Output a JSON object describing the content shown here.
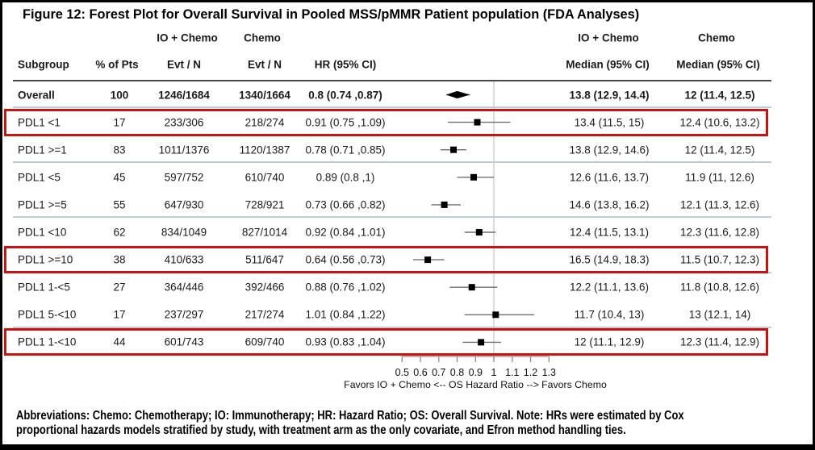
{
  "title": "Figure 12: Forest Plot for Overall Survival in Pooled MSS/pMMR Patient population (FDA Analyses)",
  "table": {
    "group_headers_left": {
      "io_chemo": "IO + Chemo",
      "chemo": "Chemo"
    },
    "group_headers_right": {
      "io_chemo": "IO + Chemo",
      "chemo": "Chemo"
    },
    "columns": {
      "subgroup": "Subgroup",
      "pct": "% of Pts",
      "evt_io": "Evt / N",
      "evt_chemo": "Evt / N",
      "hr": "HR (95% CI)",
      "median_io": "Median (95% CI)",
      "median_chemo": "Median (95% CI)"
    }
  },
  "footnote": {
    "line1": "Abbreviations: Chemo: Chemotherapy; IO: Immunotherapy; HR: Hazard Ratio; OS: Overall Survival. Note: HRs were estimated by Cox",
    "line2": "proportional hazards models stratified by study, with treatment arm as the only covariate, and Efron method handling ties."
  },
  "colors": {
    "highlight_box": "#cc1111",
    "separator": "#b7cedb",
    "header_rule": "#474747",
    "ref_line": "#c8c8c8",
    "axis": "#8a8a8a",
    "marker": "#000000",
    "ci_line": "#6e6e6e",
    "text": "#111111"
  },
  "chart_data": {
    "type": "scatter",
    "variant": "forest-plot",
    "title": "Figure 12: Forest Plot for Overall Survival in Pooled MSS/pMMR Patient population (FDA Analyses)",
    "xlabel": "Favors IO + Chemo <-- OS Hazard Ratio --> Favors Chemo",
    "xlim": [
      0.5,
      1.3
    ],
    "xticks": [
      "0.5",
      "0.6",
      "0.7",
      "0.8",
      "0.9",
      "1",
      "1.1",
      "1.2",
      "1.3"
    ],
    "reference_line": 1,
    "legend_position": "none",
    "grid": false,
    "rows": [
      {
        "subgroup": "Overall",
        "pct": "100",
        "evt_io": "1246/1684",
        "evt_chemo": "1340/1664",
        "hr": 0.8,
        "ci": [
          0.74,
          0.87
        ],
        "hr_text": "0.8 (0.74 ,0.87)",
        "median_io": "13.8 (12.9, 14.4)",
        "median_chemo": "12 (11.4, 12.5)",
        "marker": "diamond",
        "bold": true,
        "boxed": false,
        "sep_after": true
      },
      {
        "subgroup": "PDL1 <1",
        "pct": "17",
        "evt_io": "233/306",
        "evt_chemo": "218/274",
        "hr": 0.91,
        "ci": [
          0.75,
          1.09
        ],
        "hr_text": "0.91 (0.75 ,1.09)",
        "median_io": "13.4 (11.5, 15)",
        "median_chemo": "12.4 (10.6, 13.2)",
        "marker": "square",
        "bold": false,
        "boxed": true,
        "sep_after": false
      },
      {
        "subgroup": "PDL1 >=1",
        "pct": "83",
        "evt_io": "1011/1376",
        "evt_chemo": "1120/1387",
        "hr": 0.78,
        "ci": [
          0.71,
          0.85
        ],
        "hr_text": "0.78 (0.71 ,0.85)",
        "median_io": "13.8 (12.9, 14.6)",
        "median_chemo": "12 (11.4, 12.5)",
        "marker": "square",
        "bold": false,
        "boxed": false,
        "sep_after": true
      },
      {
        "subgroup": "PDL1 <5",
        "pct": "45",
        "evt_io": "597/752",
        "evt_chemo": "610/740",
        "hr": 0.89,
        "ci": [
          0.8,
          1.0
        ],
        "hr_text": "0.89 (0.8 ,1)",
        "median_io": "12.6 (11.6, 13.7)",
        "median_chemo": "11.9 (11, 12.6)",
        "marker": "square",
        "bold": false,
        "boxed": false,
        "sep_after": false
      },
      {
        "subgroup": "PDL1 >=5",
        "pct": "55",
        "evt_io": "647/930",
        "evt_chemo": "728/921",
        "hr": 0.73,
        "ci": [
          0.66,
          0.82
        ],
        "hr_text": "0.73 (0.66 ,0.82)",
        "median_io": "14.6 (13.8, 16.2)",
        "median_chemo": "12.1 (11.3, 12.6)",
        "marker": "square",
        "bold": false,
        "boxed": false,
        "sep_after": true
      },
      {
        "subgroup": "PDL1 <10",
        "pct": "62",
        "evt_io": "834/1049",
        "evt_chemo": "827/1014",
        "hr": 0.92,
        "ci": [
          0.84,
          1.01
        ],
        "hr_text": "0.92 (0.84 ,1.01)",
        "median_io": "12.4 (11.5, 13.1)",
        "median_chemo": "12.3 (11.6, 12.8)",
        "marker": "square",
        "bold": false,
        "boxed": false,
        "sep_after": false
      },
      {
        "subgroup": "PDL1 >=10",
        "pct": "38",
        "evt_io": "410/633",
        "evt_chemo": "511/647",
        "hr": 0.64,
        "ci": [
          0.56,
          0.73
        ],
        "hr_text": "0.64 (0.56 ,0.73)",
        "median_io": "16.5 (14.9, 18.3)",
        "median_chemo": "11.5 (10.7, 12.3)",
        "marker": "square",
        "bold": false,
        "boxed": true,
        "sep_after": true
      },
      {
        "subgroup": "PDL1 1-<5",
        "pct": "27",
        "evt_io": "364/446",
        "evt_chemo": "392/466",
        "hr": 0.88,
        "ci": [
          0.76,
          1.02
        ],
        "hr_text": "0.88 (0.76 ,1.02)",
        "median_io": "12.2 (11.1, 13.6)",
        "median_chemo": "11.8 (10.8, 12.6)",
        "marker": "square",
        "bold": false,
        "boxed": false,
        "sep_after": false
      },
      {
        "subgroup": "PDL1 5-<10",
        "pct": "17",
        "evt_io": "237/297",
        "evt_chemo": "217/274",
        "hr": 1.01,
        "ci": [
          0.84,
          1.22
        ],
        "hr_text": "1.01 (0.84 ,1.22)",
        "median_io": "11.7 (10.4, 13)",
        "median_chemo": "13 (12.1, 14)",
        "marker": "square",
        "bold": false,
        "boxed": false,
        "sep_after": true
      },
      {
        "subgroup": "PDL1 1-<10",
        "pct": "44",
        "evt_io": "601/743",
        "evt_chemo": "609/740",
        "hr": 0.93,
        "ci": [
          0.83,
          1.04
        ],
        "hr_text": "0.93 (0.83 ,1.04)",
        "median_io": "12 (11.1, 12.9)",
        "median_chemo": "12.3 (11.4, 12.9)",
        "marker": "square",
        "bold": false,
        "boxed": true,
        "sep_after": false
      }
    ]
  }
}
